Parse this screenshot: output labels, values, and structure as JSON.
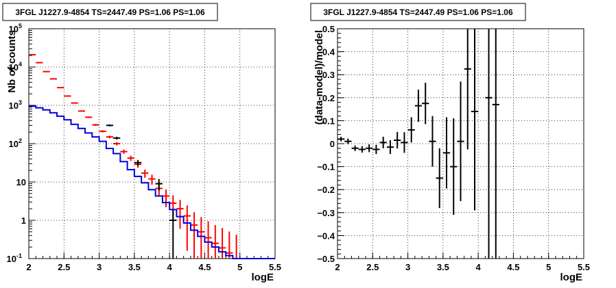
{
  "chart_data": [
    {
      "type": "scatter",
      "title": "3FGL J1227.9-4854 TS=2447.49 PS=1.06 PS=1.06",
      "xlabel": "logE",
      "ylabel": "Nb of counts",
      "xlim": [
        2,
        5.5
      ],
      "ylim": [
        0.1,
        100000
      ],
      "yscale": "log",
      "grid": true,
      "x_ticks": [
        "2",
        "2.5",
        "3",
        "3.5",
        "4",
        "4.5",
        "5",
        "5.5"
      ],
      "y_ticks": [
        {
          "base": "10",
          "exp": "-1"
        },
        {
          "base": "1",
          "exp": ""
        },
        {
          "base": "10",
          "exp": ""
        },
        {
          "base": "10",
          "exp": "2"
        },
        {
          "base": "10",
          "exp": "3"
        },
        {
          "base": "10",
          "exp": "4"
        },
        {
          "base": "10",
          "exp": "5"
        }
      ],
      "series": [
        {
          "color": "#ff0000",
          "x": [
            2.05,
            2.15,
            2.25,
            2.35,
            2.45,
            2.55,
            2.65,
            2.75,
            2.85,
            2.95,
            3.05,
            3.15,
            3.25,
            3.35,
            3.45,
            3.55,
            3.65,
            3.75,
            3.85,
            3.95,
            4.05,
            4.15,
            4.25,
            4.35,
            4.45,
            4.55,
            4.65,
            4.75,
            4.85,
            4.95
          ],
          "y": [
            21000,
            13000,
            7600,
            4900,
            2900,
            1750,
            1150,
            710,
            490,
            310,
            210,
            150,
            100,
            62,
            42,
            29,
            17,
            12,
            6.8,
            4.3,
            2.8,
            2.0,
            1.3,
            0.75,
            0.5,
            0.35,
            0.25,
            0.19,
            0.14,
            0.1
          ],
          "err": [
            [
              145,
              145
            ],
            [
              114,
              114
            ],
            [
              87,
              87
            ],
            [
              70,
              70
            ],
            [
              54,
              54
            ],
            [
              42,
              42
            ],
            [
              34,
              34
            ],
            [
              27,
              27
            ],
            [
              22,
              22
            ],
            [
              18,
              18
            ],
            [
              14,
              14
            ],
            [
              12,
              12
            ],
            [
              10,
              10
            ],
            [
              8,
              8
            ],
            [
              6.5,
              6.5
            ],
            [
              5.4,
              5.4
            ],
            [
              4.1,
              4.1
            ],
            [
              3.5,
              3.5
            ],
            [
              2.6,
              2.6
            ],
            [
              2.1,
              2.1
            ],
            [
              1.7,
              1.7
            ],
            [
              1.4,
              1.4
            ],
            [
              1.14,
              1.14
            ],
            [
              0.66,
              0.87
            ],
            [
              0.41,
              0.71
            ],
            [
              0.26,
              0.59
            ],
            [
              0.16,
              0.5
            ],
            [
              0.1,
              0.44
            ],
            [
              0.05,
              0.37
            ],
            [
              0,
              0.32
            ]
          ]
        },
        {
          "color": "#000000",
          "x": [
            3.15,
            3.25,
            3.55,
            3.85,
            4.05
          ],
          "y": [
            300,
            140,
            32,
            9,
            1.0
          ],
          "err": [
            [
              17,
              17
            ],
            [
              12,
              12
            ],
            [
              5.6,
              5.6
            ],
            [
              3,
              3
            ],
            [
              1,
              1
            ]
          ]
        },
        {
          "color": "#0000dd",
          "type": "step",
          "edges": [
            2.0,
            2.1,
            2.2,
            2.3,
            2.4,
            2.5,
            2.6,
            2.7,
            2.8,
            2.9,
            3.0,
            3.1,
            3.2,
            3.3,
            3.4,
            3.5,
            3.6,
            3.7,
            3.8,
            3.9,
            4.0,
            4.1,
            4.2,
            4.3,
            4.4,
            4.5,
            4.6,
            4.7,
            4.8,
            4.9,
            5.0,
            5.5
          ],
          "values": [
            950,
            860,
            760,
            640,
            520,
            420,
            320,
            250,
            190,
            150,
            115,
            75,
            55,
            34,
            21,
            14,
            9.5,
            6.3,
            4.3,
            2.9,
            1.9,
            1.25,
            0.85,
            0.55,
            0.38,
            0.27,
            0.2,
            0.15,
            0.12,
            0.1,
            0.1
          ]
        }
      ]
    },
    {
      "type": "scatter",
      "title": "3FGL J1227.9-4854 TS=2447.49 PS=1.06 PS=1.06",
      "xlabel": "logE",
      "ylabel": "(data-model)/model",
      "xlim": [
        2,
        5.5
      ],
      "ylim": [
        -0.5,
        0.5
      ],
      "grid": true,
      "x_ticks": [
        "2",
        "2.5",
        "3",
        "3.5",
        "4",
        "4.5",
        "5",
        "5.5"
      ],
      "y_ticks": [
        "-0.5",
        "-0.4",
        "-0.3",
        "-0.2",
        "-0.1",
        "0",
        "0.1",
        "0.2",
        "0.3",
        "0.4",
        "0.5"
      ],
      "series": [
        {
          "color": "#000000",
          "x": [
            2.05,
            2.15,
            2.25,
            2.35,
            2.45,
            2.55,
            2.65,
            2.75,
            2.85,
            2.95,
            3.05,
            3.15,
            3.25,
            3.35,
            3.45,
            3.55,
            3.65,
            3.75,
            3.85,
            3.95,
            4.15,
            4.25
          ],
          "y": [
            0.02,
            0.01,
            -0.02,
            -0.025,
            -0.02,
            -0.025,
            0.005,
            -0.015,
            0.015,
            0.005,
            0.06,
            0.165,
            0.175,
            0.01,
            -0.15,
            -0.04,
            -0.1,
            0.01,
            0.325,
            0.14,
            0.2,
            0.17
          ],
          "err": [
            0.01,
            0.012,
            0.012,
            0.014,
            0.017,
            0.02,
            0.025,
            0.03,
            0.036,
            0.045,
            0.055,
            0.07,
            0.09,
            0.11,
            0.13,
            0.155,
            0.21,
            0.26,
            0.35,
            0.43,
            1.0,
            1.0
          ]
        }
      ]
    }
  ]
}
